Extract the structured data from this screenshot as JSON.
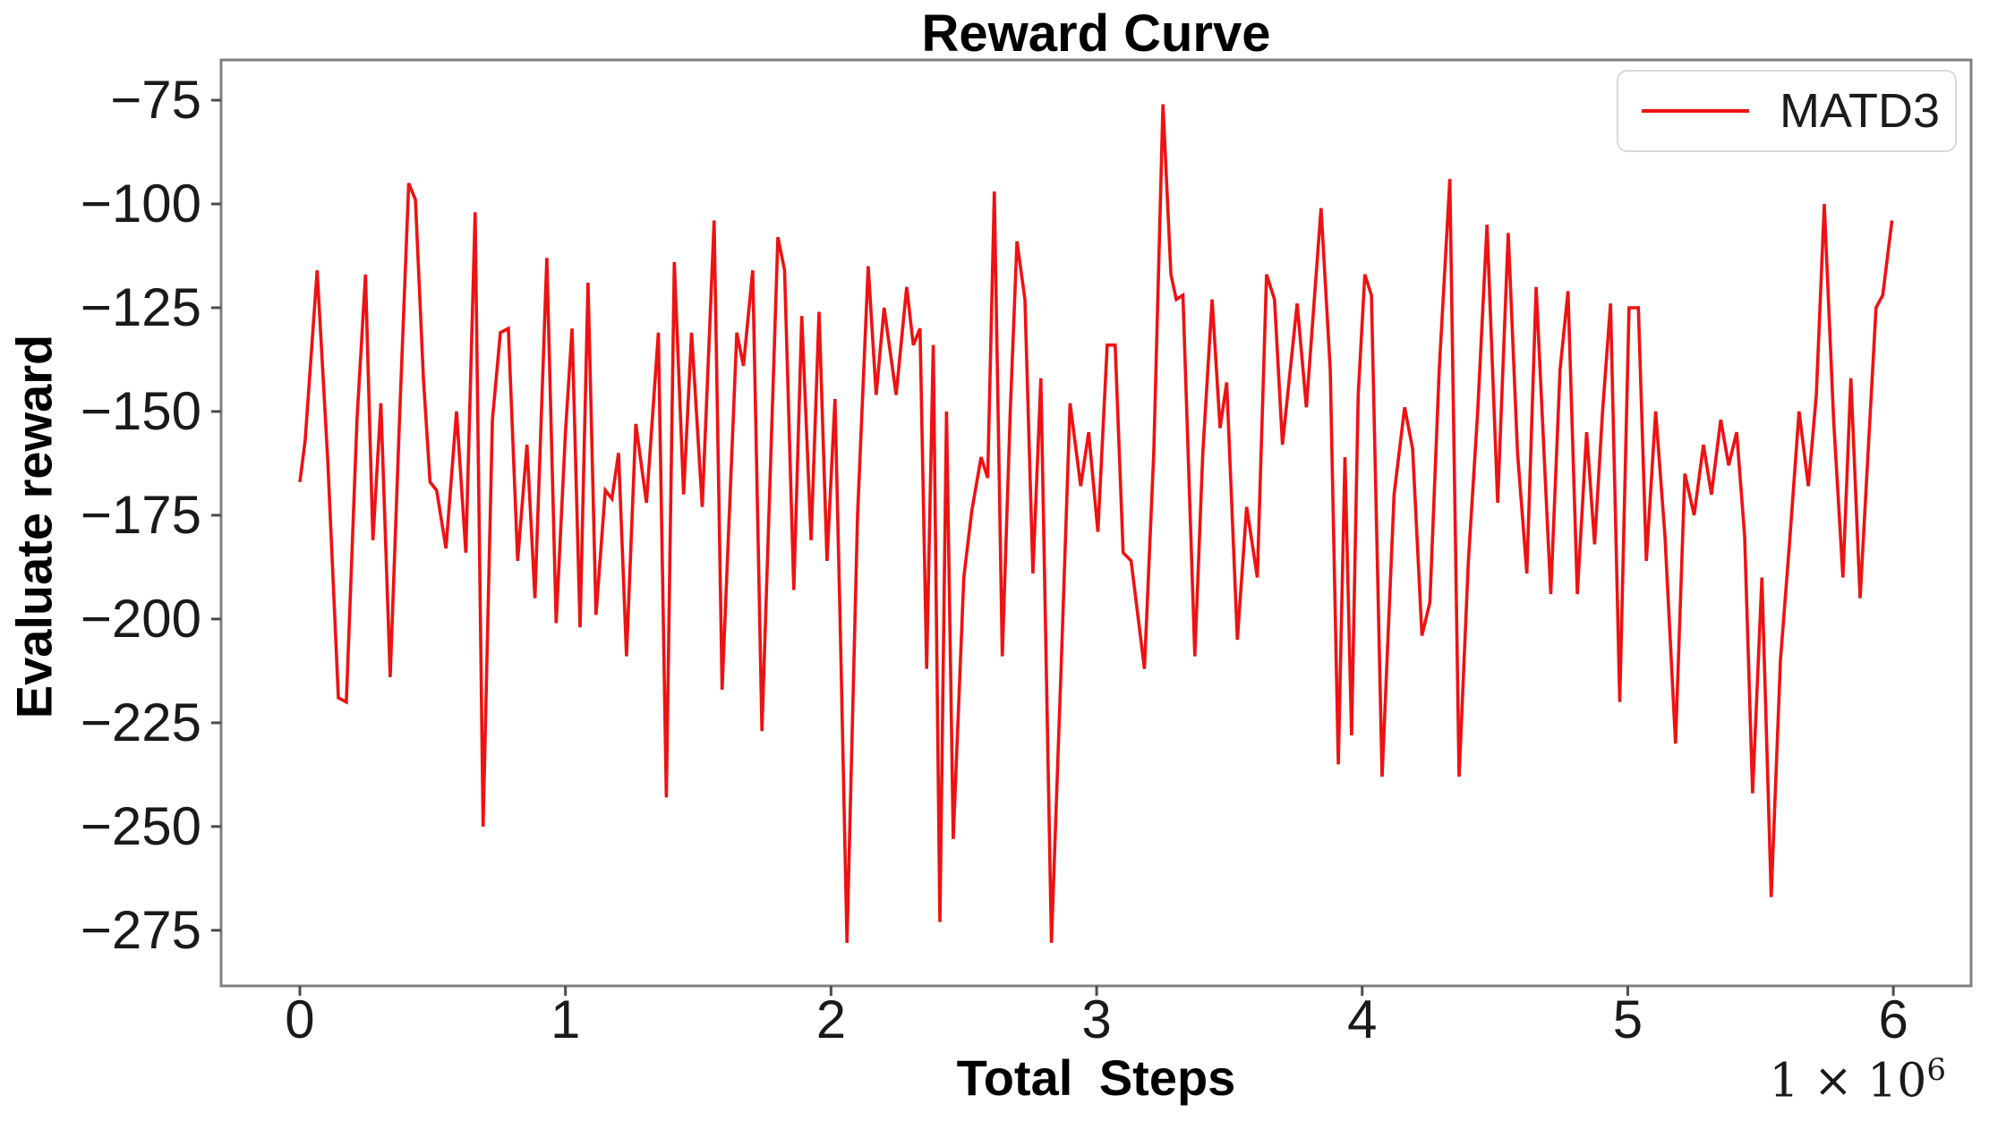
{
  "title": "Reward Curve",
  "axes": {
    "xlabel": "Total Steps",
    "ylabel": "Evaluate reward",
    "offset_base": "1 × 10",
    "offset_exp": "6"
  },
  "legend": {
    "label": "MATD3"
  },
  "colors": {
    "line": "#ee1212",
    "spine": "#808080",
    "tick": "#4d4d4d",
    "tick_label": "#1a1a1a",
    "background": "#ffffff"
  },
  "chart_data": {
    "type": "line",
    "title": "Reward Curve",
    "xlabel": "Total Steps",
    "ylabel": "Evaluate reward",
    "x_unit": "1e6 steps",
    "legend_position": "upper right",
    "grid": false,
    "xlim": [
      -0.2966,
      6.2928
    ],
    "ylim": [
      -288.4,
      -65.3
    ],
    "xtick_values": [
      0,
      1,
      2,
      3,
      4,
      5,
      6
    ],
    "xtick_labels": [
      "0",
      "1",
      "2",
      "3",
      "4",
      "5",
      "6"
    ],
    "ytick_values": [
      -75,
      -100,
      -125,
      -150,
      -175,
      -200,
      -225,
      -250,
      -275
    ],
    "ytick_labels": [
      "−75",
      "−100",
      "−125",
      "−150",
      "−175",
      "−200",
      "−225",
      "−250",
      "−275"
    ],
    "series": [
      {
        "name": "MATD3",
        "color": "#ee1212",
        "points": [
          [
            0.0,
            -167
          ],
          [
            0.02,
            -157
          ],
          [
            0.065,
            -116
          ],
          [
            0.105,
            -162
          ],
          [
            0.145,
            -219
          ],
          [
            0.175,
            -220
          ],
          [
            0.215,
            -152
          ],
          [
            0.247,
            -117
          ],
          [
            0.275,
            -181
          ],
          [
            0.305,
            -148
          ],
          [
            0.34,
            -214
          ],
          [
            0.375,
            -152
          ],
          [
            0.41,
            -95
          ],
          [
            0.435,
            -99
          ],
          [
            0.465,
            -142
          ],
          [
            0.49,
            -167
          ],
          [
            0.515,
            -169
          ],
          [
            0.55,
            -183
          ],
          [
            0.59,
            -150
          ],
          [
            0.625,
            -184
          ],
          [
            0.66,
            -102
          ],
          [
            0.69,
            -250
          ],
          [
            0.725,
            -152
          ],
          [
            0.755,
            -131
          ],
          [
            0.785,
            -130
          ],
          [
            0.82,
            -186
          ],
          [
            0.855,
            -158
          ],
          [
            0.885,
            -195
          ],
          [
            0.93,
            -113
          ],
          [
            0.965,
            -201
          ],
          [
            1.0,
            -155
          ],
          [
            1.025,
            -130
          ],
          [
            1.055,
            -202
          ],
          [
            1.085,
            -119
          ],
          [
            1.115,
            -199
          ],
          [
            1.15,
            -169
          ],
          [
            1.175,
            -171
          ],
          [
            1.2,
            -160
          ],
          [
            1.23,
            -209
          ],
          [
            1.265,
            -153
          ],
          [
            1.305,
            -172
          ],
          [
            1.35,
            -131
          ],
          [
            1.38,
            -243
          ],
          [
            1.41,
            -114
          ],
          [
            1.445,
            -170
          ],
          [
            1.475,
            -131
          ],
          [
            1.515,
            -173
          ],
          [
            1.56,
            -104
          ],
          [
            1.59,
            -217
          ],
          [
            1.645,
            -131
          ],
          [
            1.67,
            -139
          ],
          [
            1.705,
            -116
          ],
          [
            1.74,
            -227
          ],
          [
            1.8,
            -108
          ],
          [
            1.825,
            -116
          ],
          [
            1.86,
            -193
          ],
          [
            1.89,
            -127
          ],
          [
            1.925,
            -181
          ],
          [
            1.955,
            -126
          ],
          [
            1.985,
            -186
          ],
          [
            2.015,
            -147
          ],
          [
            2.035,
            -203
          ],
          [
            2.06,
            -278
          ],
          [
            2.1,
            -175
          ],
          [
            2.14,
            -115
          ],
          [
            2.17,
            -146
          ],
          [
            2.2,
            -125
          ],
          [
            2.245,
            -146
          ],
          [
            2.285,
            -120
          ],
          [
            2.31,
            -134
          ],
          [
            2.335,
            -130
          ],
          [
            2.36,
            -212
          ],
          [
            2.385,
            -134
          ],
          [
            2.41,
            -273
          ],
          [
            2.435,
            -150
          ],
          [
            2.46,
            -253
          ],
          [
            2.5,
            -190
          ],
          [
            2.53,
            -174
          ],
          [
            2.565,
            -161
          ],
          [
            2.59,
            -166
          ],
          [
            2.615,
            -97
          ],
          [
            2.645,
            -209
          ],
          [
            2.675,
            -150
          ],
          [
            2.7,
            -109
          ],
          [
            2.73,
            -123
          ],
          [
            2.76,
            -189
          ],
          [
            2.79,
            -142
          ],
          [
            2.83,
            -278
          ],
          [
            2.87,
            -205
          ],
          [
            2.9,
            -148
          ],
          [
            2.94,
            -168
          ],
          [
            2.97,
            -155
          ],
          [
            3.005,
            -179
          ],
          [
            3.04,
            -134
          ],
          [
            3.07,
            -134
          ],
          [
            3.1,
            -184
          ],
          [
            3.13,
            -186
          ],
          [
            3.18,
            -212
          ],
          [
            3.215,
            -160
          ],
          [
            3.25,
            -76
          ],
          [
            3.28,
            -117
          ],
          [
            3.3,
            -123
          ],
          [
            3.325,
            -122
          ],
          [
            3.37,
            -209
          ],
          [
            3.4,
            -160
          ],
          [
            3.435,
            -123
          ],
          [
            3.465,
            -154
          ],
          [
            3.49,
            -143
          ],
          [
            3.53,
            -205
          ],
          [
            3.565,
            -173
          ],
          [
            3.605,
            -190
          ],
          [
            3.64,
            -117
          ],
          [
            3.67,
            -123
          ],
          [
            3.7,
            -158
          ],
          [
            3.755,
            -124
          ],
          [
            3.79,
            -149
          ],
          [
            3.845,
            -101
          ],
          [
            3.88,
            -140
          ],
          [
            3.91,
            -235
          ],
          [
            3.935,
            -161
          ],
          [
            3.96,
            -228
          ],
          [
            3.985,
            -146
          ],
          [
            4.01,
            -117
          ],
          [
            4.035,
            -122
          ],
          [
            4.075,
            -238
          ],
          [
            4.12,
            -170
          ],
          [
            4.16,
            -149
          ],
          [
            4.19,
            -159
          ],
          [
            4.225,
            -204
          ],
          [
            4.255,
            -196
          ],
          [
            4.29,
            -140
          ],
          [
            4.33,
            -94
          ],
          [
            4.365,
            -238
          ],
          [
            4.4,
            -186
          ],
          [
            4.435,
            -150
          ],
          [
            4.47,
            -105
          ],
          [
            4.51,
            -172
          ],
          [
            4.55,
            -107
          ],
          [
            4.585,
            -160
          ],
          [
            4.62,
            -189
          ],
          [
            4.655,
            -120
          ],
          [
            4.71,
            -194
          ],
          [
            4.745,
            -140
          ],
          [
            4.775,
            -121
          ],
          [
            4.81,
            -194
          ],
          [
            4.845,
            -155
          ],
          [
            4.875,
            -182
          ],
          [
            4.905,
            -150
          ],
          [
            4.935,
            -124
          ],
          [
            4.97,
            -220
          ],
          [
            5.005,
            -125
          ],
          [
            5.04,
            -125
          ],
          [
            5.07,
            -186
          ],
          [
            5.105,
            -150
          ],
          [
            5.14,
            -180
          ],
          [
            5.18,
            -230
          ],
          [
            5.215,
            -165
          ],
          [
            5.25,
            -175
          ],
          [
            5.285,
            -158
          ],
          [
            5.315,
            -170
          ],
          [
            5.35,
            -152
          ],
          [
            5.38,
            -163
          ],
          [
            5.41,
            -155
          ],
          [
            5.44,
            -180
          ],
          [
            5.47,
            -242
          ],
          [
            5.505,
            -190
          ],
          [
            5.54,
            -267
          ],
          [
            5.575,
            -210
          ],
          [
            5.61,
            -181
          ],
          [
            5.645,
            -150
          ],
          [
            5.68,
            -168
          ],
          [
            5.71,
            -146
          ],
          [
            5.74,
            -100
          ],
          [
            5.775,
            -152
          ],
          [
            5.81,
            -190
          ],
          [
            5.84,
            -142
          ],
          [
            5.875,
            -195
          ],
          [
            5.935,
            -125
          ],
          [
            5.96,
            -122
          ],
          [
            5.995,
            -104
          ]
        ]
      }
    ]
  }
}
